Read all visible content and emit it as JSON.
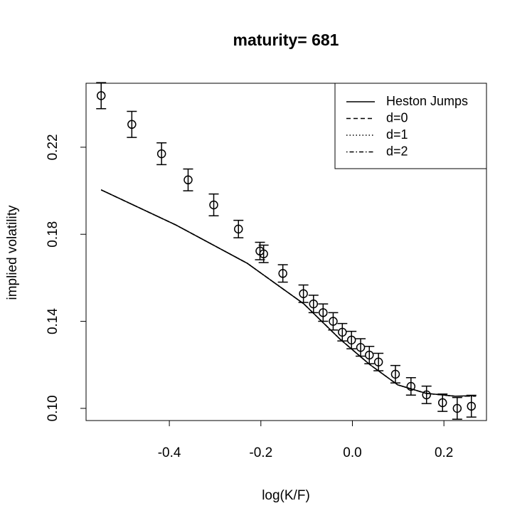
{
  "chart_data": {
    "type": "line",
    "title": "maturity= 681",
    "xlabel": "log(K/F)",
    "ylabel": "implied volatility",
    "xlim": [
      -0.582,
      0.293
    ],
    "ylim": [
      0.0944,
      0.2494
    ],
    "xticks": [
      -0.4,
      -0.2,
      {
        "value": 0,
        "label": "0.0"
      },
      0.2
    ],
    "yticks": [
      {
        "value": 0.1,
        "label": "0.10"
      },
      0.14,
      0.18,
      0.22
    ],
    "legend": "top-right",
    "x": [
      -0.549,
      -0.386,
      -0.23,
      -0.106,
      -0.028,
      0.037,
      0.099,
      0.161,
      0.224,
      0.27
    ],
    "series": [
      {
        "name": "Heston Jumps",
        "color": "#000000",
        "dash": "none",
        "values": [
          0.2004,
          0.1843,
          0.1667,
          0.148,
          0.132,
          0.1203,
          0.1108,
          0.1069,
          0.1056,
          0.1059
        ]
      },
      {
        "name": "d=0",
        "color": "#000000",
        "dash": "6 4",
        "values": [
          0.2004,
          0.1843,
          0.1667,
          0.148,
          0.132,
          0.1203,
          0.1108,
          0.1069,
          0.1056,
          0.1056
        ]
      },
      {
        "name": "d=1",
        "color": "#000000",
        "dash": "1.5 3",
        "values": [
          0.2004,
          0.1843,
          0.1667,
          0.148,
          0.132,
          0.1203,
          0.1108,
          0.1069,
          0.1056,
          0.1056
        ]
      },
      {
        "name": "d=2",
        "color": "#000000",
        "dash": "1.5 3 6 3",
        "values": [
          0.2004,
          0.1843,
          0.1667,
          0.148,
          0.132,
          0.1203,
          0.1108,
          0.1069,
          0.1056,
          0.1056
        ]
      }
    ],
    "points": {
      "x": [
        -0.549,
        -0.482,
        -0.417,
        -0.359,
        -0.303,
        -0.249,
        -0.202,
        -0.194,
        -0.152,
        -0.107,
        -0.085,
        -0.064,
        -0.042,
        -0.022,
        -0.002,
        0.018,
        0.037,
        0.057,
        0.094,
        0.128,
        0.162,
        0.197,
        0.229,
        0.26
      ],
      "values": [
        0.2437,
        0.2305,
        0.217,
        0.205,
        0.1935,
        0.1824,
        0.1723,
        0.171,
        0.162,
        0.1527,
        0.148,
        0.144,
        0.14,
        0.135,
        0.1314,
        0.128,
        0.1245,
        0.1213,
        0.1157,
        0.1101,
        0.1062,
        0.1026,
        0.1,
        0.101
      ],
      "errors": [
        0.006,
        0.006,
        0.005,
        0.005,
        0.005,
        0.004,
        0.004,
        0.004,
        0.004,
        0.004,
        0.004,
        0.004,
        0.004,
        0.004,
        0.004,
        0.004,
        0.004,
        0.004,
        0.004,
        0.004,
        0.004,
        0.004,
        0.005,
        0.005
      ]
    }
  }
}
